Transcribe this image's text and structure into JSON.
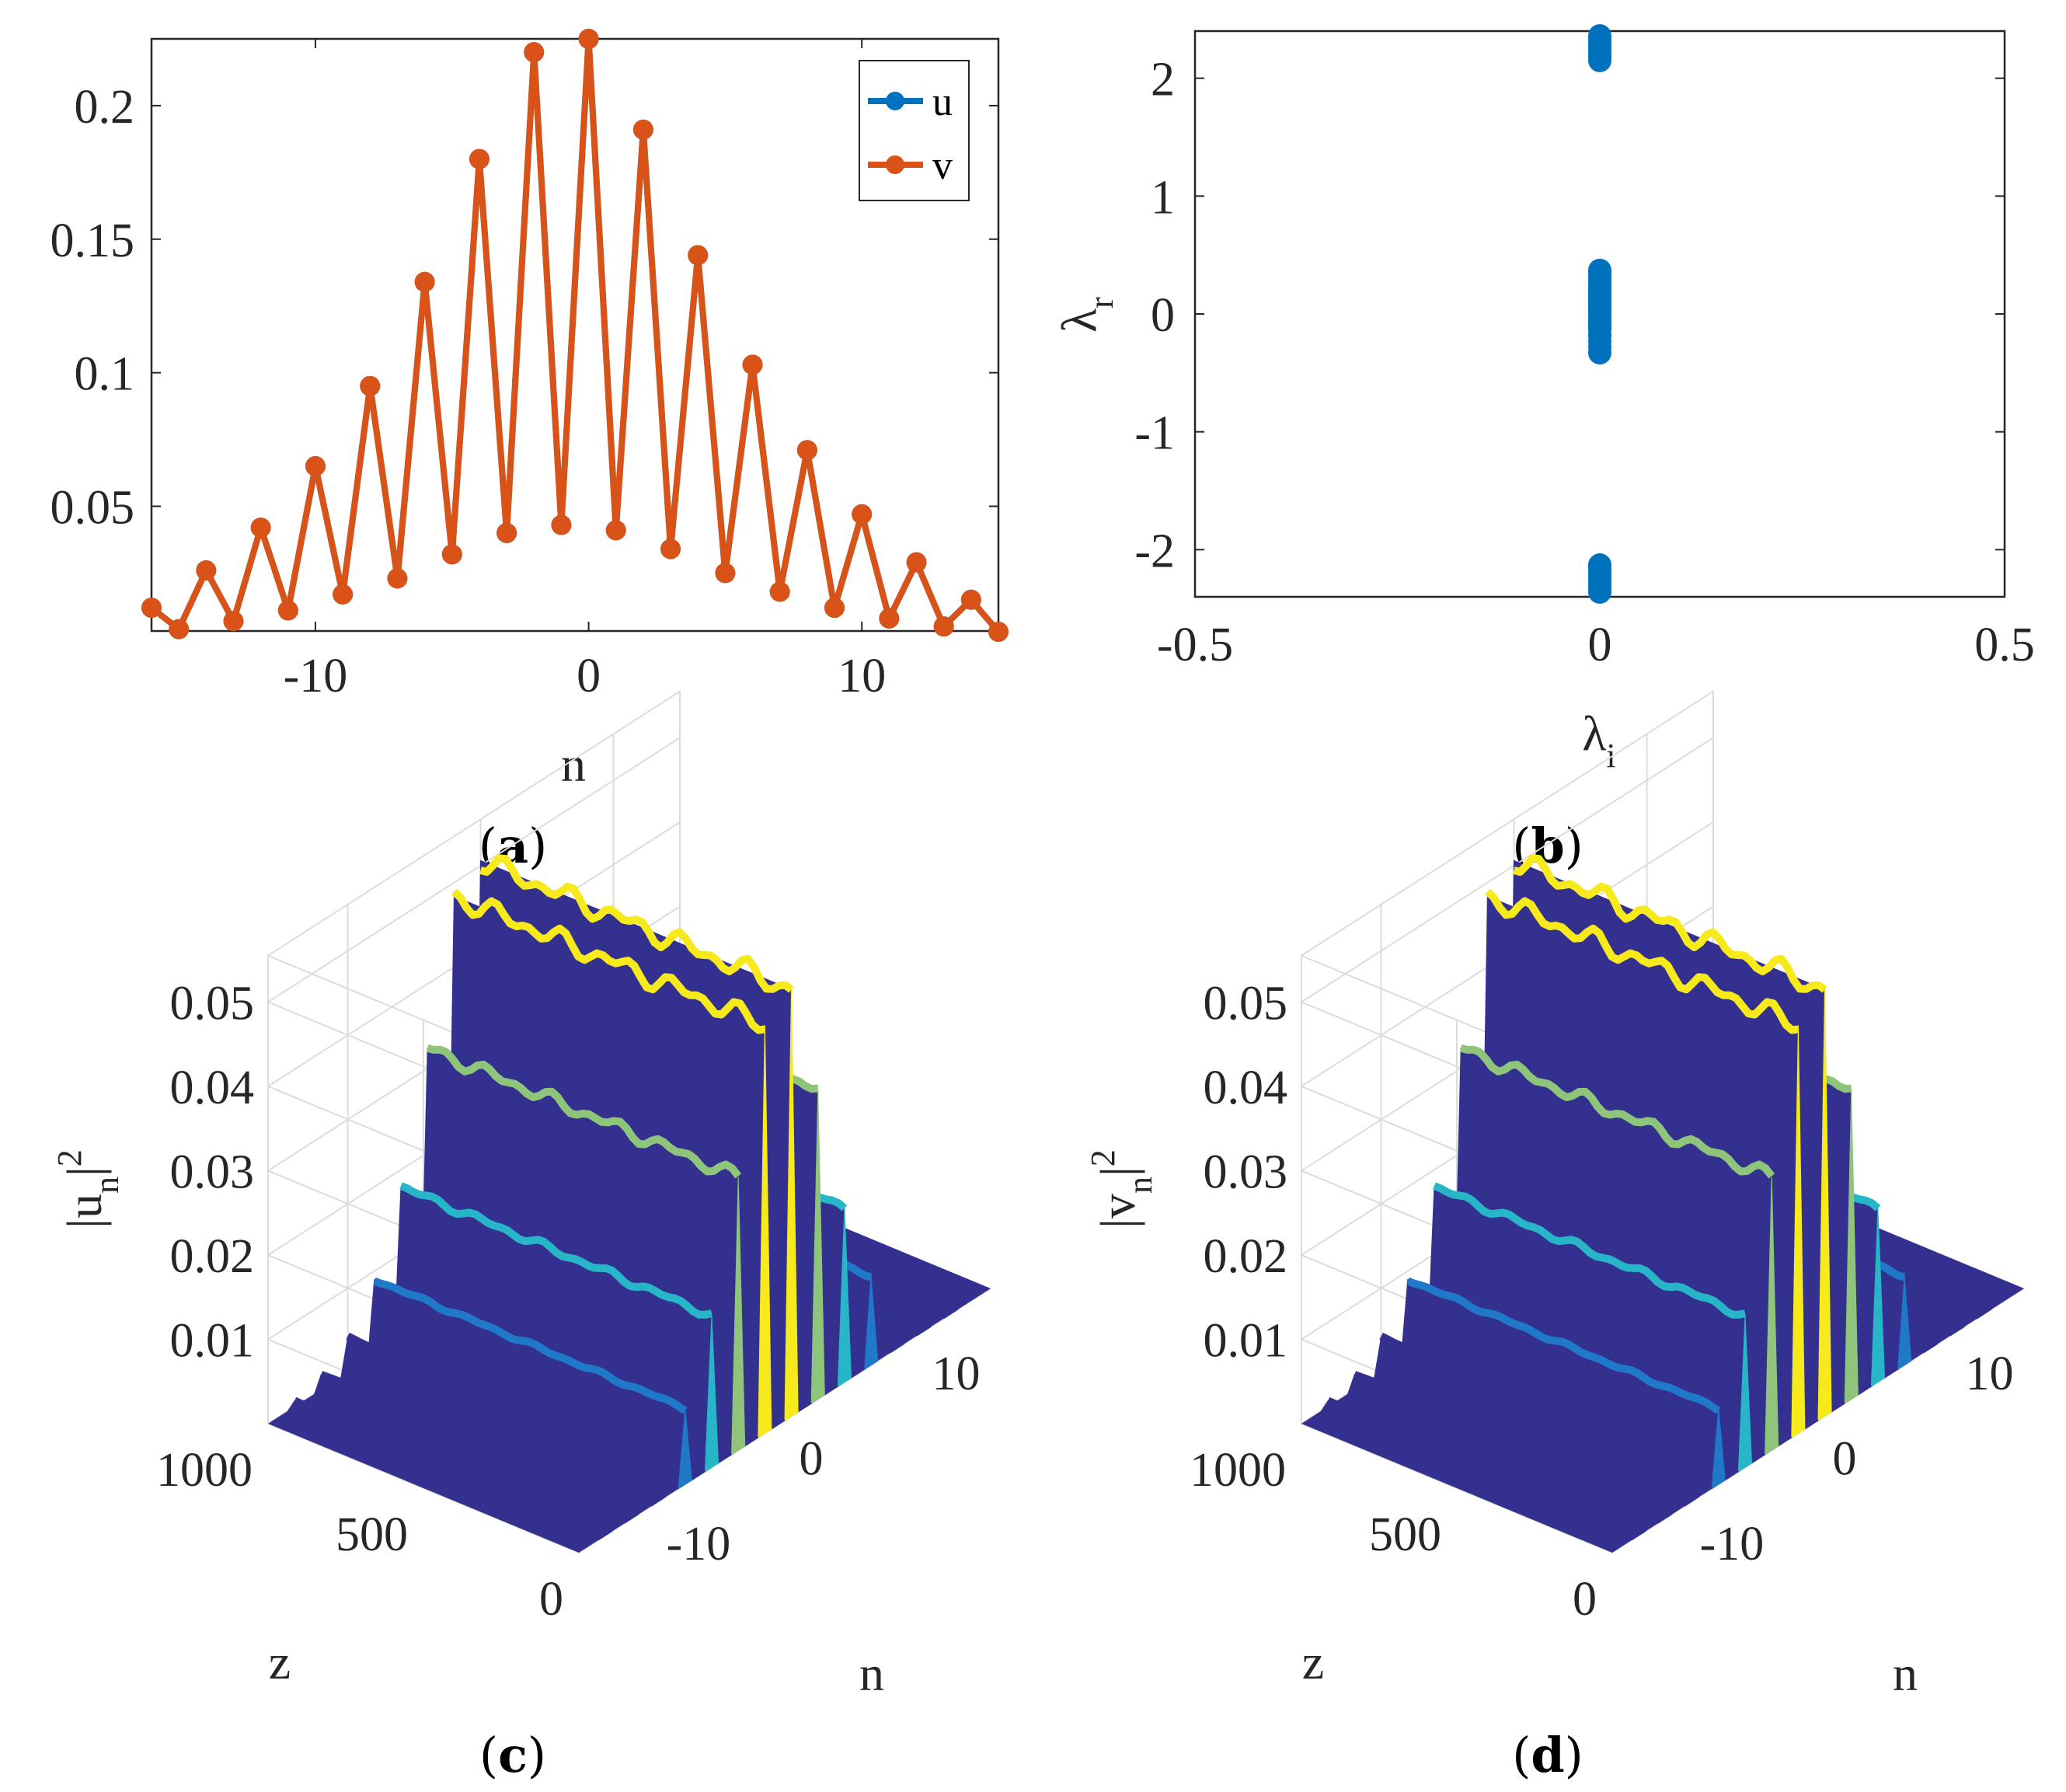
{
  "colors": {
    "u": "#0072BD",
    "v": "#D95319",
    "surface_low": "#33308f",
    "surface_mid": "#1f78c8",
    "surface_cyan": "#27b6c8",
    "surface_green": "#8fc57a",
    "surface_yellow": "#f7ea1c",
    "grid": "#dcdcdc",
    "axis": "#262626"
  },
  "chart_data": [
    {
      "panel": "a",
      "caption_open": "(",
      "caption_letter": "a",
      "caption_close": ")",
      "type": "line",
      "xlabel": "n",
      "ylabel": "",
      "xlim": [
        -16,
        15
      ],
      "ylim": [
        0.0033,
        0.225
      ],
      "xticks": [
        -10,
        0,
        10
      ],
      "xtick_labels": [
        "-10",
        "0",
        "10"
      ],
      "yticks": [
        0.05,
        0.1,
        0.15,
        0.2
      ],
      "ytick_labels": [
        "0.05",
        "0.1",
        "0.15",
        "0.2"
      ],
      "legend": {
        "position": "top-right",
        "entries": [
          "u",
          "v"
        ]
      },
      "series": [
        {
          "name": "u",
          "color_key": "u",
          "x": [
            -16,
            -15,
            -14,
            -13,
            -12,
            -11,
            -10,
            -9,
            -8,
            -7,
            -6,
            -5,
            -4,
            -3,
            -2,
            -1,
            0,
            1,
            2,
            3,
            4,
            5,
            6,
            7,
            8,
            9,
            10,
            11,
            12,
            13,
            14,
            15
          ],
          "values": [
            0.012,
            0.004,
            0.026,
            0.007,
            0.042,
            0.011,
            0.065,
            0.017,
            0.095,
            0.023,
            0.134,
            0.032,
            0.18,
            0.04,
            0.22,
            0.043,
            0.225,
            0.041,
            0.191,
            0.034,
            0.144,
            0.025,
            0.103,
            0.018,
            0.071,
            0.012,
            0.047,
            0.008,
            0.029,
            0.005,
            0.015,
            0.003
          ]
        },
        {
          "name": "v",
          "color_key": "v",
          "x": [
            -16,
            -15,
            -14,
            -13,
            -12,
            -11,
            -10,
            -9,
            -8,
            -7,
            -6,
            -5,
            -4,
            -3,
            -2,
            -1,
            0,
            1,
            2,
            3,
            4,
            5,
            6,
            7,
            8,
            9,
            10,
            11,
            12,
            13,
            14,
            15
          ],
          "values": [
            0.012,
            0.004,
            0.026,
            0.007,
            0.042,
            0.011,
            0.065,
            0.017,
            0.095,
            0.023,
            0.134,
            0.032,
            0.18,
            0.04,
            0.22,
            0.043,
            0.225,
            0.041,
            0.191,
            0.034,
            0.144,
            0.025,
            0.103,
            0.018,
            0.071,
            0.012,
            0.047,
            0.008,
            0.029,
            0.005,
            0.015,
            0.003
          ]
        }
      ]
    },
    {
      "panel": "b",
      "caption_open": "(",
      "caption_letter": "b",
      "caption_close": ")",
      "type": "scatter",
      "xlabel_main": "λ",
      "xlabel_sub": "i",
      "ylabel_main": "λ",
      "ylabel_sub": "r",
      "xlim": [
        -0.5,
        0.5
      ],
      "ylim": [
        -2.4,
        2.4
      ],
      "xticks": [
        -0.5,
        0,
        0.5
      ],
      "xtick_labels": [
        "-0.5",
        "0",
        "0.5"
      ],
      "yticks": [
        -2,
        -1,
        0,
        1,
        2
      ],
      "ytick_labels": [
        "-2",
        "-1",
        "0",
        "1",
        "2"
      ],
      "series": [
        {
          "name": "eigenvalues",
          "color_key": "u",
          "x": [
            0,
            0,
            0,
            0,
            0,
            0,
            0,
            0,
            0,
            0,
            0,
            0,
            0,
            0,
            0,
            0,
            0,
            0,
            0,
            0,
            0,
            0,
            0,
            0,
            0,
            0,
            0,
            0,
            0,
            0,
            0,
            0,
            0,
            0,
            0,
            0,
            0,
            0,
            0,
            0,
            0,
            0
          ],
          "y": [
            2.36,
            2.33,
            2.3,
            2.27,
            2.24,
            2.21,
            2.18,
            2.15,
            0.37,
            0.32,
            0.27,
            0.22,
            0.17,
            0.12,
            0.07,
            0.02,
            -0.03,
            -0.08,
            -0.13,
            -0.18,
            -0.23,
            -0.28,
            -0.33,
            0.35,
            0.29,
            0.24,
            0.19,
            0.14,
            0.09,
            0.04,
            -0.01,
            -0.06,
            -0.11,
            -2.15,
            -2.18,
            -2.21,
            -2.24,
            -2.27,
            -2.3,
            -2.33,
            -2.36,
            -2.13
          ]
        }
      ]
    },
    {
      "panel": "c",
      "caption_open": "(",
      "caption_letter": "c",
      "caption_close": ")",
      "type": "surface",
      "zlabel_pre": "|u",
      "zlabel_sub": "n",
      "zlabel_post": "|",
      "zlabel_sup": "2",
      "xlabel": "n",
      "ylabel": "z",
      "zticks": [
        0.01,
        0.02,
        0.03,
        0.04,
        0.05
      ],
      "ztick_labels": [
        "0.01",
        "0.02",
        "0.03",
        "0.04",
        "0.05"
      ],
      "ztick_values": [
        0.01,
        0.02,
        0.03,
        0.04,
        0.05
      ],
      "ztick_labels_text": [
        "0.01",
        "0.02",
        "0.03",
        "0.04",
        "0.05"
      ],
      "zlim": [
        0,
        0.055
      ],
      "ylim": [
        0,
        1000
      ],
      "yticks": [
        0,
        500,
        1000
      ],
      "ytick_labels": [
        "0",
        "500",
        "1000"
      ],
      "xlim": [
        -16,
        15
      ],
      "xticks": [
        -10,
        0,
        10
      ],
      "xtick_labels": [
        "-10",
        "0",
        "10"
      ],
      "n": [
        -16,
        -15,
        -14,
        -13,
        -12,
        -11,
        -10,
        -9,
        -8,
        -7,
        -6,
        -5,
        -4,
        -3,
        -2,
        -1,
        0,
        1,
        2,
        3,
        4,
        5,
        6,
        7,
        8,
        9,
        10,
        11,
        12,
        13,
        14,
        15
      ],
      "intensity": [
        0.0001,
        0.0,
        0.0007,
        0.0,
        0.0018,
        0.0001,
        0.0042,
        0.0003,
        0.009,
        0.0005,
        0.018,
        0.001,
        0.0324,
        0.0016,
        0.0484,
        0.0018,
        0.0506,
        0.0017,
        0.0365,
        0.0012,
        0.0207,
        0.0006,
        0.0106,
        0.0003,
        0.005,
        0.0001,
        0.0022,
        0.0001,
        0.0008,
        0.0,
        0.0002,
        0.0
      ]
    },
    {
      "panel": "d",
      "caption_open": "(",
      "caption_letter": "d",
      "caption_close": ")",
      "type": "surface",
      "zlabel_pre": "|v",
      "zlabel_sub": "n",
      "zlabel_post": "|",
      "zlabel_sup": "2",
      "xlabel": "n",
      "ylabel": "z",
      "ztick_values": [
        0.01,
        0.02,
        0.03,
        0.04,
        0.05
      ],
      "ztick_labels_text": [
        "0.01",
        "0.02",
        "0.03",
        "0.04",
        "0.05"
      ],
      "zlim": [
        0,
        0.055
      ],
      "ylim": [
        0,
        1000
      ],
      "yticks": [
        0,
        500,
        1000
      ],
      "ytick_labels": [
        "0",
        "500",
        "1000"
      ],
      "xlim": [
        -16,
        15
      ],
      "xticks": [
        -10,
        0,
        10
      ],
      "xtick_labels": [
        "-10",
        "0",
        "10"
      ],
      "n": [
        -16,
        -15,
        -14,
        -13,
        -12,
        -11,
        -10,
        -9,
        -8,
        -7,
        -6,
        -5,
        -4,
        -3,
        -2,
        -1,
        0,
        1,
        2,
        3,
        4,
        5,
        6,
        7,
        8,
        9,
        10,
        11,
        12,
        13,
        14,
        15
      ],
      "intensity": [
        0.0001,
        0.0,
        0.0007,
        0.0,
        0.0018,
        0.0001,
        0.0042,
        0.0003,
        0.009,
        0.0005,
        0.018,
        0.001,
        0.0324,
        0.0016,
        0.0484,
        0.0018,
        0.0506,
        0.0017,
        0.0365,
        0.0012,
        0.0207,
        0.0006,
        0.0106,
        0.0003,
        0.005,
        0.0001,
        0.0022,
        0.0001,
        0.0008,
        0.0,
        0.0002,
        0.0
      ]
    }
  ]
}
